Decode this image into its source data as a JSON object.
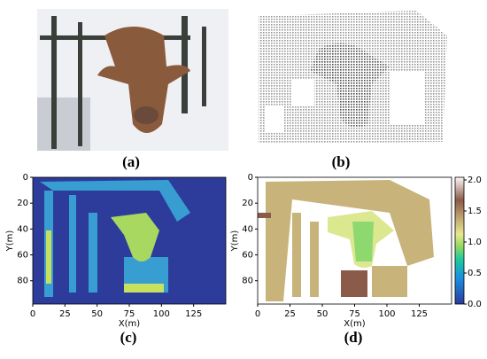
{
  "panels": [
    {
      "caption": "(a)"
    },
    {
      "caption": "(b)"
    },
    {
      "caption": "(c)",
      "x_label": "X(m)",
      "y_label": "Y(m)",
      "xlim": [
        0,
        150
      ],
      "ylim": [
        0,
        98
      ],
      "xticks": [
        0,
        25,
        50,
        75,
        100,
        125
      ],
      "yticks": [
        0,
        20,
        40,
        60,
        80
      ]
    },
    {
      "caption": "(d)",
      "x_label": "X(m)",
      "y_label": "Y(m)",
      "xlim": [
        0,
        150
      ],
      "ylim": [
        0,
        98
      ],
      "xticks": [
        0,
        25,
        50,
        75,
        100,
        125
      ],
      "yticks": [
        0,
        20,
        40,
        60,
        80
      ],
      "colorbar": {
        "lim": [
          0,
          2
        ],
        "ticks": [
          {
            "value": 0,
            "label": "0.0"
          },
          {
            "value": 0.5,
            "label": "0.5"
          },
          {
            "value": 1,
            "label": "1.0"
          },
          {
            "value": 1.5,
            "label": "1.5"
          },
          {
            "value": 2,
            "label": "2.0"
          }
        ]
      }
    }
  ]
}
